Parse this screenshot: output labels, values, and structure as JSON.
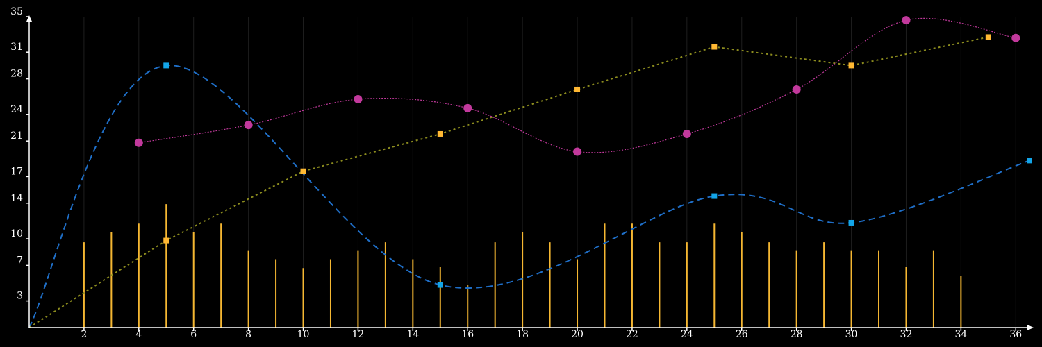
{
  "chart_data": {
    "type": "line",
    "title": "",
    "xlabel": "",
    "ylabel": "",
    "xlim": [
      0,
      36.5
    ],
    "ylim": [
      0,
      35
    ],
    "x_ticks": [
      2,
      4,
      6,
      8,
      10,
      12,
      14,
      16,
      18,
      20,
      22,
      24,
      26,
      28,
      30,
      32,
      34,
      36
    ],
    "y_ticks": [
      3,
      7,
      10,
      14,
      17,
      21,
      24,
      28,
      31,
      35
    ],
    "grid": "vertical",
    "legend": "none",
    "colors": {
      "background": "#000000",
      "axis": "#ffffff",
      "grid": "#1e1e1e",
      "blue_series": "#1f6fc8",
      "blue_marker": "#13a5e8",
      "olive_series": "#8c8c1e",
      "olive_marker": "#ffb833",
      "magenta_series": "#c2399c",
      "bars": "#f5b732"
    },
    "series": [
      {
        "type": "bar",
        "x": [
          2,
          3,
          4,
          5,
          6,
          7,
          8,
          9,
          10,
          11,
          12,
          13,
          14,
          15,
          16,
          17,
          18,
          19,
          20,
          21,
          22,
          23,
          24,
          25,
          26,
          27,
          28,
          29,
          30,
          31,
          32,
          33,
          34
        ],
        "values": [
          9.6,
          10.7,
          11.7,
          13.9,
          10.7,
          11.7,
          8.7,
          7.7,
          6.7,
          7.7,
          8.7,
          9.6,
          7.7,
          6.8,
          4.8,
          9.6,
          10.7,
          9.6,
          7.7,
          11.7,
          11.7,
          9.6,
          9.6,
          11.7,
          10.7,
          9.6,
          8.7,
          9.6,
          8.7,
          8.7,
          6.8,
          8.7,
          5.8
        ]
      },
      {
        "type": "line",
        "style": "dashed-smooth",
        "x": [
          0,
          5,
          15,
          25,
          30,
          36.5
        ],
        "values": [
          0,
          29.5,
          4.8,
          14.8,
          11.8,
          18.8
        ]
      },
      {
        "type": "line",
        "style": "dotted",
        "x": [
          0,
          5,
          10,
          15,
          20,
          25,
          30,
          35
        ],
        "values": [
          0,
          9.8,
          17.6,
          21.8,
          26.8,
          31.6,
          29.5,
          32.7
        ]
      },
      {
        "type": "line",
        "style": "dotted-smooth",
        "x": [
          4,
          8,
          12,
          16,
          20,
          24,
          28,
          32,
          36
        ],
        "values": [
          20.8,
          22.8,
          25.7,
          24.7,
          19.8,
          21.8,
          26.8,
          34.6,
          32.6
        ]
      }
    ]
  }
}
